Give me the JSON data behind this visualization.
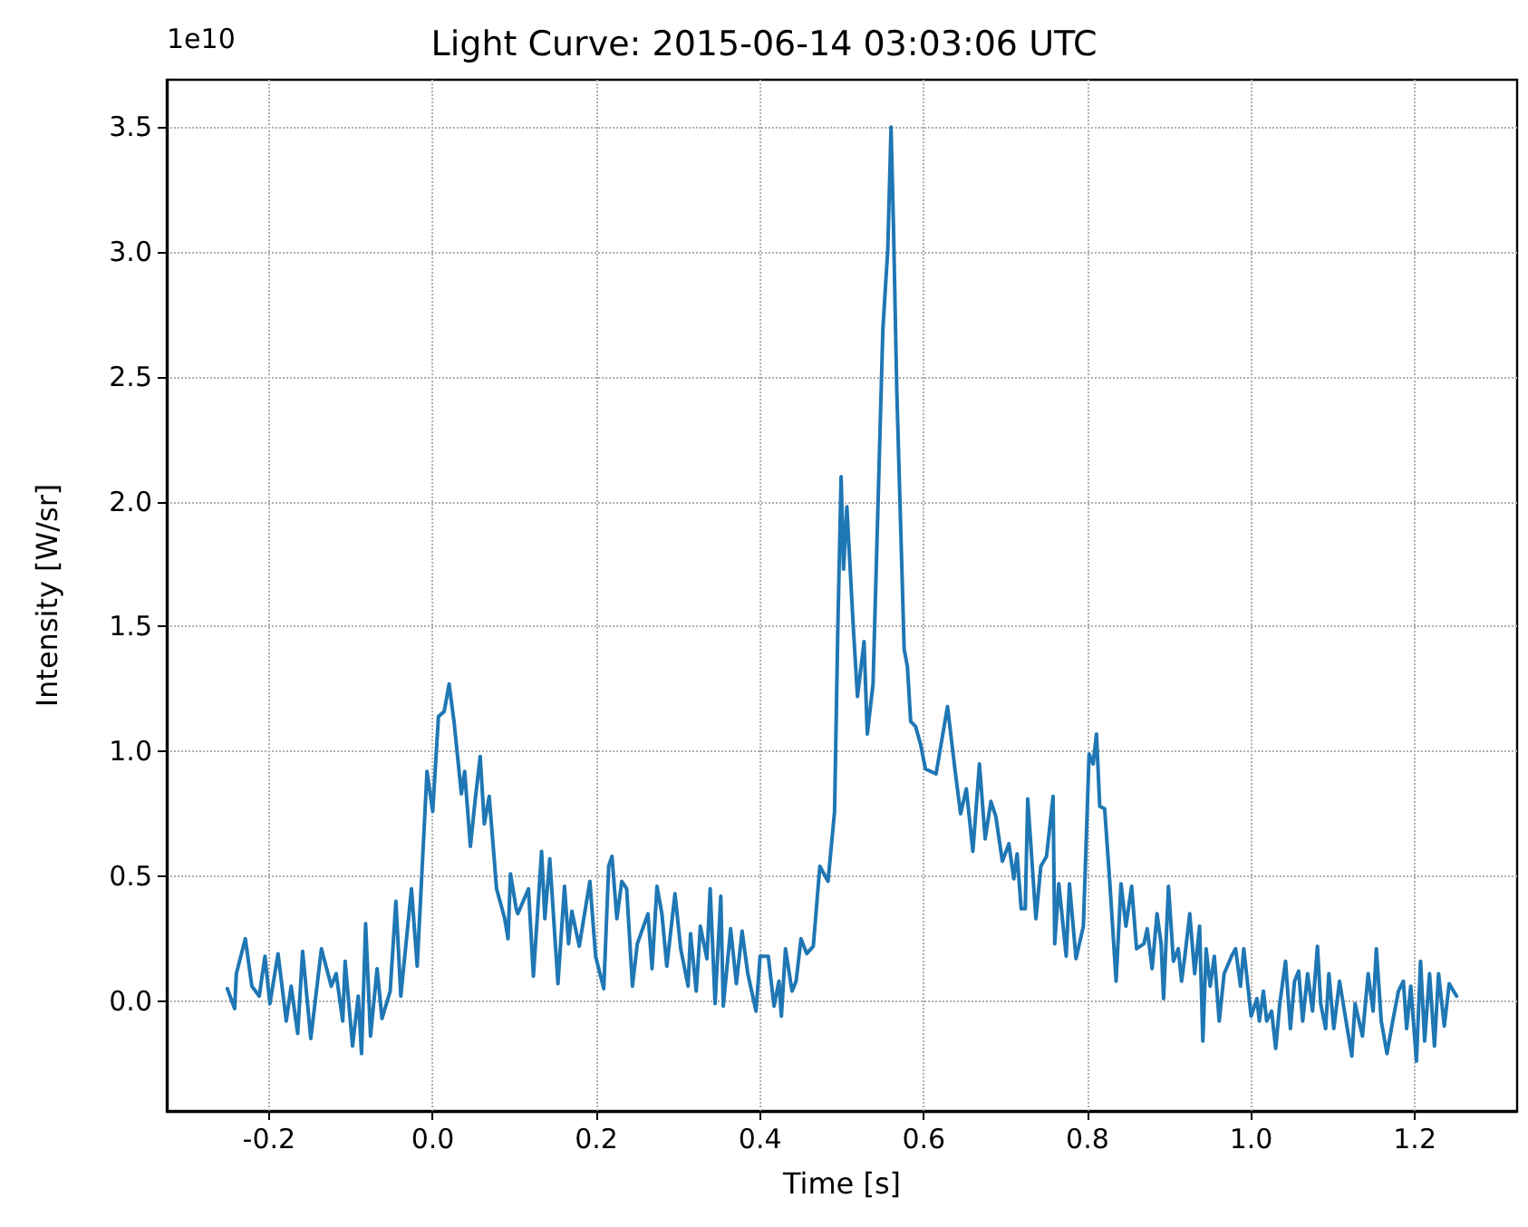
{
  "chart_data": {
    "type": "line",
    "title": "Light Curve: 2015-06-14 03:03:06 UTC",
    "xlabel": "Time [s]",
    "ylabel": "Intensity [W/sr]",
    "annotations": [
      "1e10"
    ],
    "xlim": [
      -0.325,
      1.325
    ],
    "ylim": [
      -0.44,
      3.69
    ],
    "xticks": [
      -0.2,
      {
        "value": 0,
        "label": "0.0"
      },
      0.2,
      0.4,
      0.6,
      0.8,
      {
        "value": 1,
        "label": "1.0"
      },
      1.2
    ],
    "yticks": [
      {
        "value": 0,
        "label": "0.0"
      },
      0.5,
      {
        "value": 1,
        "label": "1.0"
      },
      1.5,
      {
        "value": 2,
        "label": "2.0"
      },
      2.5,
      {
        "value": 3,
        "label": "3.0"
      },
      3.5
    ],
    "grid": true,
    "series": [
      {
        "color": "#1f77b4",
        "x": [
          -0.251,
          -0.242,
          -0.24,
          -0.229,
          -0.221,
          -0.212,
          -0.205,
          -0.199,
          -0.189,
          -0.179,
          -0.173,
          -0.165,
          -0.159,
          -0.149,
          -0.136,
          -0.124,
          -0.118,
          -0.11,
          -0.107,
          -0.098,
          -0.091,
          -0.087,
          -0.082,
          -0.076,
          -0.068,
          -0.062,
          -0.052,
          -0.045,
          -0.039,
          -0.026,
          -0.019,
          -0.007,
          0.0,
          0.007,
          0.014,
          0.02,
          0.026,
          0.035,
          0.039,
          0.046,
          0.052,
          0.058,
          0.063,
          0.069,
          0.078,
          0.088,
          0.092,
          0.095,
          0.102,
          0.104,
          0.117,
          0.123,
          0.133,
          0.137,
          0.143,
          0.153,
          0.161,
          0.166,
          0.17,
          0.179,
          0.192,
          0.199,
          0.209,
          0.215,
          0.219,
          0.225,
          0.231,
          0.237,
          0.244,
          0.25,
          0.263,
          0.268,
          0.274,
          0.28,
          0.286,
          0.296,
          0.303,
          0.312,
          0.315,
          0.322,
          0.327,
          0.335,
          0.339,
          0.345,
          0.352,
          0.355,
          0.364,
          0.371,
          0.378,
          0.385,
          0.395,
          0.4,
          0.41,
          0.417,
          0.423,
          0.426,
          0.431,
          0.439,
          0.444,
          0.45,
          0.457,
          0.465,
          0.473,
          0.483,
          0.491,
          0.495,
          0.499,
          0.502,
          0.506,
          0.514,
          0.519,
          0.527,
          0.531,
          0.538,
          0.55,
          0.556,
          0.56,
          0.563,
          0.567,
          0.576,
          0.58,
          0.584,
          0.59,
          0.596,
          0.602,
          0.615,
          0.629,
          0.638,
          0.645,
          0.652,
          0.66,
          0.668,
          0.675,
          0.682,
          0.688,
          0.696,
          0.704,
          0.71,
          0.714,
          0.719,
          0.724,
          0.727,
          0.737,
          0.743,
          0.75,
          0.758,
          0.76,
          0.765,
          0.774,
          0.778,
          0.786,
          0.795,
          0.802,
          0.807,
          0.811,
          0.815,
          0.821,
          0.827,
          0.835,
          0.841,
          0.847,
          0.854,
          0.86,
          0.869,
          0.873,
          0.879,
          0.885,
          0.89,
          0.893,
          0.899,
          0.905,
          0.911,
          0.915,
          0.919,
          0.925,
          0.931,
          0.937,
          0.941,
          0.945,
          0.95,
          0.955,
          0.961,
          0.967,
          0.976,
          0.981,
          0.987,
          0.991,
          1.0,
          1.007,
          1.01,
          1.015,
          1.019,
          1.025,
          1.03,
          1.035,
          1.042,
          1.048,
          1.053,
          1.058,
          1.063,
          1.069,
          1.075,
          1.081,
          1.085,
          1.091,
          1.095,
          1.101,
          1.108,
          1.114,
          1.123,
          1.127,
          1.136,
          1.143,
          1.149,
          1.153,
          1.159,
          1.166,
          1.173,
          1.18,
          1.186,
          1.19,
          1.195,
          1.202,
          1.207,
          1.212,
          1.218,
          1.224,
          1.229,
          1.236,
          1.242,
          1.251
        ],
        "values": [
          0.05,
          -0.03,
          0.11,
          0.25,
          0.06,
          0.02,
          0.18,
          -0.01,
          0.19,
          -0.08,
          0.06,
          -0.13,
          0.2,
          -0.15,
          0.21,
          0.06,
          0.11,
          -0.08,
          0.16,
          -0.18,
          0.02,
          -0.21,
          0.31,
          -0.14,
          0.13,
          -0.07,
          0.04,
          0.4,
          0.02,
          0.45,
          0.14,
          0.92,
          0.76,
          1.14,
          1.16,
          1.27,
          1.12,
          0.83,
          0.92,
          0.62,
          0.81,
          0.98,
          0.71,
          0.82,
          0.45,
          0.33,
          0.25,
          0.51,
          0.37,
          0.35,
          0.45,
          0.1,
          0.6,
          0.33,
          0.57,
          0.07,
          0.46,
          0.23,
          0.36,
          0.22,
          0.48,
          0.18,
          0.05,
          0.54,
          0.58,
          0.33,
          0.48,
          0.45,
          0.06,
          0.23,
          0.35,
          0.13,
          0.46,
          0.35,
          0.14,
          0.43,
          0.21,
          0.06,
          0.27,
          0.04,
          0.3,
          0.17,
          0.45,
          -0.01,
          0.42,
          -0.02,
          0.29,
          0.07,
          0.28,
          0.11,
          -0.04,
          0.18,
          0.18,
          -0.02,
          0.08,
          -0.06,
          0.21,
          0.04,
          0.08,
          0.25,
          0.19,
          0.22,
          0.54,
          0.48,
          0.76,
          1.5,
          2.1,
          1.73,
          1.98,
          1.49,
          1.22,
          1.44,
          1.07,
          1.27,
          2.69,
          3.01,
          3.5,
          3.1,
          2.45,
          1.41,
          1.34,
          1.12,
          1.1,
          1.03,
          0.93,
          0.91,
          1.18,
          0.93,
          0.75,
          0.85,
          0.6,
          0.95,
          0.65,
          0.8,
          0.74,
          0.56,
          0.63,
          0.49,
          0.59,
          0.37,
          0.37,
          0.81,
          0.33,
          0.54,
          0.58,
          0.82,
          0.23,
          0.47,
          0.18,
          0.47,
          0.17,
          0.3,
          0.99,
          0.95,
          1.07,
          0.78,
          0.77,
          0.49,
          0.08,
          0.47,
          0.3,
          0.46,
          0.21,
          0.23,
          0.29,
          0.13,
          0.35,
          0.23,
          0.01,
          0.46,
          0.16,
          0.21,
          0.08,
          0.18,
          0.35,
          0.11,
          0.3,
          -0.16,
          0.21,
          0.06,
          0.18,
          -0.08,
          0.11,
          0.18,
          0.21,
          0.06,
          0.21,
          -0.06,
          0.01,
          -0.08,
          0.04,
          -0.08,
          -0.04,
          -0.19,
          -0.01,
          0.16,
          -0.11,
          0.08,
          0.12,
          -0.08,
          0.11,
          -0.04,
          0.22,
          -0.01,
          -0.11,
          0.11,
          -0.11,
          0.08,
          -0.04,
          -0.22,
          -0.01,
          -0.14,
          0.11,
          -0.04,
          0.21,
          -0.08,
          -0.21,
          -0.08,
          0.04,
          0.08,
          -0.11,
          0.06,
          -0.24,
          0.16,
          -0.16,
          0.11,
          -0.18,
          0.11,
          -0.1,
          0.07,
          0.02
        ]
      }
    ]
  }
}
